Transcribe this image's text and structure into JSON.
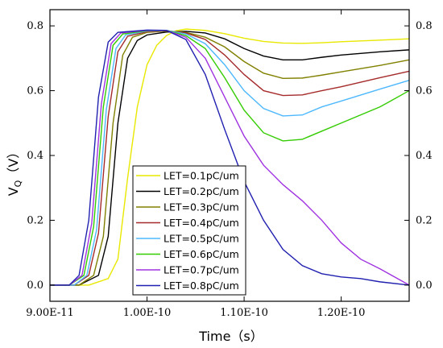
{
  "chart_data": {
    "type": "line",
    "title": "",
    "xlabel": "Time（s）",
    "ylabel_main": "V",
    "ylabel_sub": "Q",
    "ylabel_unit": "（V）",
    "xlim": [
      9e-11,
      1.27e-10
    ],
    "ylim": [
      -0.05,
      0.85
    ],
    "x_ticks": [
      {
        "value": 9e-11,
        "label": "9.00E-11"
      },
      {
        "value": 1e-10,
        "label": "1.00E-10"
      },
      {
        "value": 1.1e-10,
        "label": "1.10E-10"
      },
      {
        "value": 1.2e-10,
        "label": "1.20E-10"
      }
    ],
    "y_ticks": [
      {
        "value": 0.0,
        "label": "0.0"
      },
      {
        "value": 0.2,
        "label": "0.2"
      },
      {
        "value": 0.4,
        "label": "0.4"
      },
      {
        "value": 0.6,
        "label": "0.6"
      },
      {
        "value": 0.8,
        "label": "0.8"
      }
    ],
    "legend_position": "inside-lower-center",
    "series": [
      {
        "name": "LET=0.1pC/um",
        "color": "#e8e800",
        "points": [
          [
            9e-11,
            0.0
          ],
          [
            9.4e-11,
            0.0
          ],
          [
            9.6e-11,
            0.02
          ],
          [
            9.7e-11,
            0.08
          ],
          [
            9.8e-11,
            0.33
          ],
          [
            9.9e-11,
            0.55
          ],
          [
            1e-10,
            0.68
          ],
          [
            1.01e-10,
            0.74
          ],
          [
            1.02e-10,
            0.77
          ],
          [
            1.03e-10,
            0.785
          ],
          [
            1.04e-10,
            0.79
          ],
          [
            1.06e-10,
            0.786
          ],
          [
            1.08e-10,
            0.776
          ],
          [
            1.1e-10,
            0.762
          ],
          [
            1.12e-10,
            0.752
          ],
          [
            1.14e-10,
            0.747
          ],
          [
            1.16e-10,
            0.746
          ],
          [
            1.18e-10,
            0.748
          ],
          [
            1.2e-10,
            0.751
          ],
          [
            1.24e-10,
            0.756
          ],
          [
            1.27e-10,
            0.76
          ]
        ]
      },
      {
        "name": "LET=0.2pC/um",
        "color": "#000000",
        "points": [
          [
            9e-11,
            0.0
          ],
          [
            9.3e-11,
            0.0
          ],
          [
            9.5e-11,
            0.03
          ],
          [
            9.6e-11,
            0.15
          ],
          [
            9.7e-11,
            0.5
          ],
          [
            9.8e-11,
            0.7
          ],
          [
            9.9e-11,
            0.755
          ],
          [
            1e-10,
            0.772
          ],
          [
            1.02e-10,
            0.781
          ],
          [
            1.04e-10,
            0.783
          ],
          [
            1.06e-10,
            0.778
          ],
          [
            1.08e-10,
            0.76
          ],
          [
            1.1e-10,
            0.73
          ],
          [
            1.12e-10,
            0.707
          ],
          [
            1.14e-10,
            0.695
          ],
          [
            1.16e-10,
            0.695
          ],
          [
            1.18e-10,
            0.703
          ],
          [
            1.2e-10,
            0.71
          ],
          [
            1.24e-10,
            0.72
          ],
          [
            1.27e-10,
            0.726
          ]
        ]
      },
      {
        "name": "LET=0.3pC/um",
        "color": "#808000",
        "points": [
          [
            9e-11,
            0.0
          ],
          [
            9.3e-11,
            0.0
          ],
          [
            9.45e-11,
            0.03
          ],
          [
            9.55e-11,
            0.15
          ],
          [
            9.65e-11,
            0.5
          ],
          [
            9.75e-11,
            0.71
          ],
          [
            9.85e-11,
            0.765
          ],
          [
            1e-10,
            0.78
          ],
          [
            1.02e-10,
            0.784
          ],
          [
            1.04e-10,
            0.78
          ],
          [
            1.06e-10,
            0.765
          ],
          [
            1.08e-10,
            0.735
          ],
          [
            1.1e-10,
            0.69
          ],
          [
            1.12e-10,
            0.654
          ],
          [
            1.14e-10,
            0.638
          ],
          [
            1.16e-10,
            0.639
          ],
          [
            1.18e-10,
            0.648
          ],
          [
            1.2e-10,
            0.658
          ],
          [
            1.24e-10,
            0.678
          ],
          [
            1.27e-10,
            0.695
          ]
        ]
      },
      {
        "name": "LET=0.4pC/um",
        "color": "#a52a2a",
        "points": [
          [
            9e-11,
            0.0
          ],
          [
            9.25e-11,
            0.0
          ],
          [
            9.4e-11,
            0.03
          ],
          [
            9.5e-11,
            0.16
          ],
          [
            9.6e-11,
            0.52
          ],
          [
            9.7e-11,
            0.72
          ],
          [
            9.8e-11,
            0.768
          ],
          [
            1e-10,
            0.782
          ],
          [
            1.02e-10,
            0.785
          ],
          [
            1.04e-10,
            0.778
          ],
          [
            1.06e-10,
            0.758
          ],
          [
            1.08e-10,
            0.71
          ],
          [
            1.1e-10,
            0.65
          ],
          [
            1.12e-10,
            0.6
          ],
          [
            1.14e-10,
            0.585
          ],
          [
            1.16e-10,
            0.587
          ],
          [
            1.18e-10,
            0.6
          ],
          [
            1.2e-10,
            0.612
          ],
          [
            1.24e-10,
            0.64
          ],
          [
            1.27e-10,
            0.66
          ]
        ]
      },
      {
        "name": "LET=0.5pC/um",
        "color": "#4db8ff",
        "points": [
          [
            9e-11,
            0.0
          ],
          [
            9.25e-11,
            0.0
          ],
          [
            9.38e-11,
            0.03
          ],
          [
            9.48e-11,
            0.17
          ],
          [
            9.58e-11,
            0.54
          ],
          [
            9.68e-11,
            0.73
          ],
          [
            9.78e-11,
            0.772
          ],
          [
            1e-10,
            0.784
          ],
          [
            1.02e-10,
            0.786
          ],
          [
            1.04e-10,
            0.775
          ],
          [
            1.06e-10,
            0.745
          ],
          [
            1.08e-10,
            0.68
          ],
          [
            1.1e-10,
            0.6
          ],
          [
            1.12e-10,
            0.545
          ],
          [
            1.14e-10,
            0.522
          ],
          [
            1.16e-10,
            0.525
          ],
          [
            1.18e-10,
            0.55
          ],
          [
            1.2e-10,
            0.568
          ],
          [
            1.24e-10,
            0.605
          ],
          [
            1.27e-10,
            0.632
          ]
        ]
      },
      {
        "name": "LET=0.6pC/um",
        "color": "#33cc00",
        "points": [
          [
            9e-11,
            0.0
          ],
          [
            9.2e-11,
            0.0
          ],
          [
            9.35e-11,
            0.03
          ],
          [
            9.45e-11,
            0.18
          ],
          [
            9.55e-11,
            0.55
          ],
          [
            9.65e-11,
            0.74
          ],
          [
            9.75e-11,
            0.775
          ],
          [
            1e-10,
            0.785
          ],
          [
            1.02e-10,
            0.786
          ],
          [
            1.04e-10,
            0.77
          ],
          [
            1.06e-10,
            0.73
          ],
          [
            1.08e-10,
            0.64
          ],
          [
            1.1e-10,
            0.54
          ],
          [
            1.12e-10,
            0.47
          ],
          [
            1.14e-10,
            0.445
          ],
          [
            1.16e-10,
            0.45
          ],
          [
            1.18e-10,
            0.475
          ],
          [
            1.2e-10,
            0.5
          ],
          [
            1.24e-10,
            0.55
          ],
          [
            1.27e-10,
            0.6
          ]
        ]
      },
      {
        "name": "LET=0.7pC/um",
        "color": "#a033e0",
        "points": [
          [
            9e-11,
            0.0
          ],
          [
            9.2e-11,
            0.0
          ],
          [
            9.33e-11,
            0.03
          ],
          [
            9.43e-11,
            0.19
          ],
          [
            9.53e-11,
            0.56
          ],
          [
            9.63e-11,
            0.745
          ],
          [
            9.73e-11,
            0.778
          ],
          [
            1e-10,
            0.786
          ],
          [
            1.02e-10,
            0.786
          ],
          [
            1.04e-10,
            0.765
          ],
          [
            1.06e-10,
            0.7
          ],
          [
            1.08e-10,
            0.58
          ],
          [
            1.1e-10,
            0.46
          ],
          [
            1.12e-10,
            0.37
          ],
          [
            1.14e-10,
            0.31
          ],
          [
            1.16e-10,
            0.26
          ],
          [
            1.18e-10,
            0.2
          ],
          [
            1.2e-10,
            0.13
          ],
          [
            1.22e-10,
            0.08
          ],
          [
            1.24e-10,
            0.05
          ],
          [
            1.27e-10,
            0.0
          ]
        ]
      },
      {
        "name": "LET=0.8pC/um",
        "color": "#2020b0",
        "points": [
          [
            9e-11,
            0.0
          ],
          [
            9.2e-11,
            0.0
          ],
          [
            9.3e-11,
            0.03
          ],
          [
            9.4e-11,
            0.2
          ],
          [
            9.5e-11,
            0.58
          ],
          [
            9.6e-11,
            0.75
          ],
          [
            9.7e-11,
            0.78
          ],
          [
            1e-10,
            0.787
          ],
          [
            1.02e-10,
            0.786
          ],
          [
            1.04e-10,
            0.758
          ],
          [
            1.06e-10,
            0.65
          ],
          [
            1.08e-10,
            0.48
          ],
          [
            1.1e-10,
            0.32
          ],
          [
            1.12e-10,
            0.2
          ],
          [
            1.14e-10,
            0.11
          ],
          [
            1.16e-10,
            0.06
          ],
          [
            1.18e-10,
            0.035
          ],
          [
            1.2e-10,
            0.025
          ],
          [
            1.22e-10,
            0.02
          ],
          [
            1.24e-10,
            0.01
          ],
          [
            1.27e-10,
            0.0
          ]
        ]
      }
    ]
  }
}
